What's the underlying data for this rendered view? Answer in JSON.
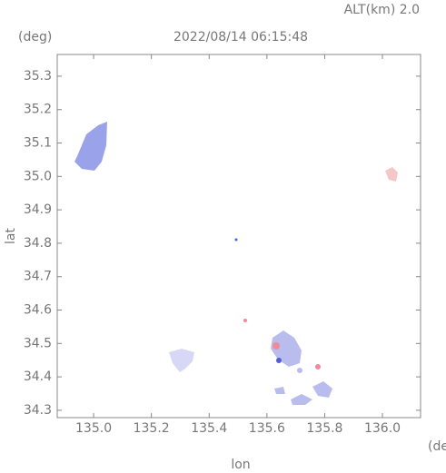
{
  "chart_data": {
    "type": "map",
    "title": "2022/08/14 06:15:48",
    "subtitle": "ALT(km) 2.0",
    "y_unit": "(deg)",
    "x_unit": "(deg)",
    "x_label": "lon",
    "y_label": "lat",
    "xlim": [
      134.874,
      136.132
    ],
    "ylim": [
      34.278,
      35.365
    ],
    "xticks": [
      {
        "value": 135.0,
        "label": "135.0"
      },
      135.2,
      135.4,
      135.6,
      135.8,
      {
        "value": 136.0,
        "label": "136.0"
      }
    ],
    "yticks": [
      34.3,
      34.4,
      34.5,
      34.6,
      34.7,
      34.8,
      34.9,
      {
        "value": 35.0,
        "label": "35.0"
      },
      35.1,
      35.2,
      35.3
    ]
  }
}
